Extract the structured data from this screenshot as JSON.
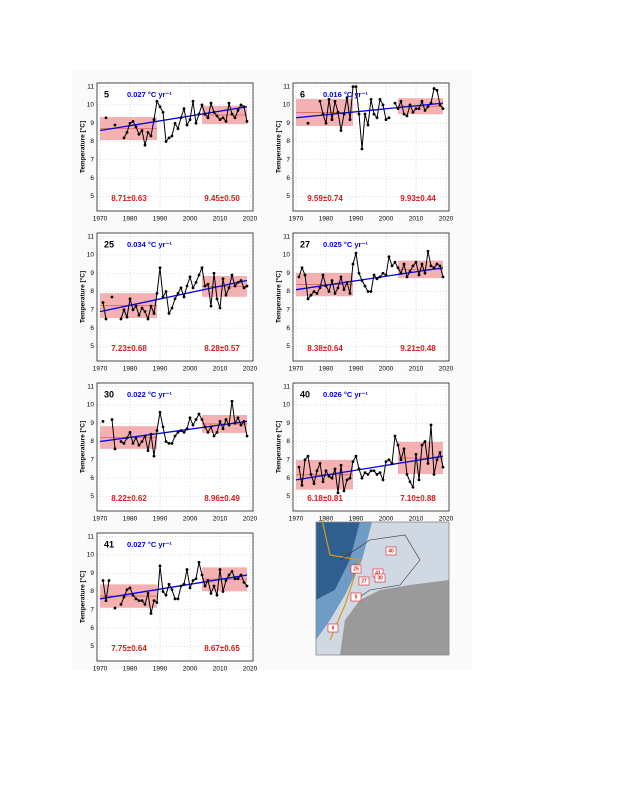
{
  "chart_data": [
    {
      "type": "line",
      "panel": "5",
      "trend_label": "0.027 °C yr⁻¹",
      "ylabel": "Temperature [°C]",
      "x": [
        1971,
        1972,
        1973,
        1974,
        1975,
        1976,
        1977,
        1978,
        1979,
        1980,
        1981,
        1982,
        1983,
        1984,
        1985,
        1986,
        1987,
        1988,
        1989,
        1990,
        1991,
        1992,
        1993,
        1994,
        1995,
        1996,
        1997,
        1998,
        1999,
        2000,
        2001,
        2002,
        2003,
        2004,
        2005,
        2006,
        2007,
        2008,
        2009,
        2010,
        2011,
        2012,
        2013,
        2014,
        2015,
        2016,
        2017,
        2018,
        2019
      ],
      "series": [
        {
          "color": "#000000",
          "values": [
            null,
            9.3,
            null,
            null,
            8.9,
            null,
            null,
            8.2,
            8.5,
            9.0,
            9.1,
            8.8,
            8.4,
            8.6,
            7.8,
            8.5,
            8.3,
            9.2,
            10.2,
            9.9,
            9.6,
            8.0,
            8.2,
            8.3,
            9.0,
            8.7,
            9.3,
            9.8,
            8.9,
            9.2,
            10.2,
            9.0,
            9.5,
            10.0,
            9.5,
            9.3,
            10.1,
            9.6,
            9.4,
            9.2,
            9.3,
            9.1,
            10.1,
            9.5,
            9.3,
            9.7,
            10.0,
            9.9,
            9.1
          ]
        }
      ],
      "trend_line": {
        "color": "#0000ee",
        "x": [
          1970,
          2019
        ],
        "values": [
          8.6,
          9.9
        ]
      },
      "bands": [
        {
          "x0": 1970,
          "x1": 1989,
          "mean": 8.71,
          "sd": 0.63,
          "label": "8.71±0.63"
        },
        {
          "x0": 2004,
          "x1": 2019,
          "mean": 9.45,
          "sd": 0.5,
          "label": "9.45±0.50"
        }
      ],
      "band_color": "#f3a3a3",
      "label_color": "#e0191b",
      "xlim": [
        1969,
        2021
      ],
      "xticks": [
        1970,
        1980,
        1990,
        2000,
        2010,
        2020
      ],
      "ylim": [
        4.2,
        11.2
      ],
      "yticks": [
        5,
        6,
        7,
        8,
        9,
        10,
        11
      ],
      "grid": true
    },
    {
      "type": "line",
      "panel": "6",
      "trend_label": "0.016 °C yr⁻¹",
      "ylabel": "Temperature [°C]",
      "x": [
        1971,
        1972,
        1973,
        1974,
        1975,
        1976,
        1977,
        1978,
        1979,
        1980,
        1981,
        1982,
        1983,
        1984,
        1985,
        1986,
        1987,
        1988,
        1989,
        1990,
        1991,
        1992,
        1993,
        1994,
        1995,
        1996,
        1997,
        1998,
        1999,
        2000,
        2001,
        2002,
        2003,
        2004,
        2005,
        2006,
        2007,
        2008,
        2009,
        2010,
        2011,
        2012,
        2013,
        2014,
        2015,
        2016,
        2017,
        2018,
        2019
      ],
      "series": [
        {
          "color": "#000000",
          "values": [
            null,
            null,
            null,
            9.0,
            null,
            null,
            null,
            10.2,
            9.5,
            9.0,
            10.3,
            9.2,
            10.2,
            9.6,
            8.6,
            9.5,
            10.4,
            9.2,
            11.0,
            11.0,
            9.5,
            7.6,
            9.5,
            8.9,
            10.3,
            9.5,
            9.3,
            10.3,
            10.0,
            9.2,
            9.3,
            null,
            10.1,
            9.8,
            10.2,
            9.5,
            9.4,
            10.0,
            9.6,
            9.8,
            9.8,
            10.2,
            9.7,
            9.9,
            10.1,
            10.9,
            10.8,
            10.0,
            9.8
          ]
        }
      ],
      "trend_line": {
        "color": "#0000ee",
        "x": [
          1970,
          2019
        ],
        "values": [
          9.3,
          10.1
        ]
      },
      "bands": [
        {
          "x0": 1970,
          "x1": 1989,
          "mean": 9.59,
          "sd": 0.74,
          "label": "9.59±0.74"
        },
        {
          "x0": 2004,
          "x1": 2019,
          "mean": 9.93,
          "sd": 0.44,
          "label": "9.93±0.44"
        }
      ],
      "band_color": "#f3a3a3",
      "label_color": "#e0191b",
      "xlim": [
        1969,
        2021
      ],
      "xticks": [
        1970,
        1980,
        1990,
        2000,
        2010,
        2020
      ],
      "ylim": [
        4.2,
        11.2
      ],
      "yticks": [
        5,
        6,
        7,
        8,
        9,
        10,
        11
      ],
      "grid": true
    },
    {
      "type": "line",
      "panel": "25",
      "trend_label": "0.034 °C yr⁻¹",
      "ylabel": "Temperature [°C]",
      "x": [
        1971,
        1972,
        1973,
        1974,
        1975,
        1976,
        1977,
        1978,
        1979,
        1980,
        1981,
        1982,
        1983,
        1984,
        1985,
        1986,
        1987,
        1988,
        1989,
        1990,
        1991,
        1992,
        1993,
        1994,
        1995,
        1996,
        1997,
        1998,
        1999,
        2000,
        2001,
        2002,
        2003,
        2004,
        2005,
        2006,
        2007,
        2008,
        2009,
        2010,
        2011,
        2012,
        2013,
        2014,
        2015,
        2016,
        2017,
        2018,
        2019
      ],
      "series": [
        {
          "color": "#000000",
          "values": [
            7.4,
            6.5,
            null,
            7.7,
            null,
            null,
            6.5,
            7.0,
            6.6,
            7.6,
            7.0,
            7.2,
            6.7,
            7.1,
            6.9,
            6.5,
            7.2,
            6.8,
            7.9,
            9.3,
            7.7,
            8.0,
            6.8,
            7.1,
            7.6,
            7.9,
            8.2,
            7.7,
            8.3,
            8.8,
            8.2,
            8.5,
            8.9,
            9.3,
            8.3,
            8.4,
            7.2,
            9.0,
            7.6,
            7.1,
            8.7,
            7.8,
            8.2,
            8.9,
            8.3,
            8.5,
            8.6,
            8.2,
            8.3
          ]
        }
      ],
      "trend_line": {
        "color": "#0000ee",
        "x": [
          1970,
          2019
        ],
        "values": [
          6.9,
          8.6
        ]
      },
      "bands": [
        {
          "x0": 1970,
          "x1": 1989,
          "mean": 7.23,
          "sd": 0.68,
          "label": "7.23±0.68"
        },
        {
          "x0": 2004,
          "x1": 2019,
          "mean": 8.28,
          "sd": 0.57,
          "label": "8.28±0.57"
        }
      ],
      "band_color": "#f3a3a3",
      "label_color": "#e0191b",
      "xlim": [
        1969,
        2021
      ],
      "xticks": [
        1970,
        1980,
        1990,
        2000,
        2010,
        2020
      ],
      "ylim": [
        4.2,
        11.2
      ],
      "yticks": [
        5,
        6,
        7,
        8,
        9,
        10,
        11
      ],
      "grid": true
    },
    {
      "type": "line",
      "panel": "27",
      "trend_label": "0.025 °C yr⁻¹",
      "ylabel": "Temperature [°C]",
      "x": [
        1971,
        1972,
        1973,
        1974,
        1975,
        1976,
        1977,
        1978,
        1979,
        1980,
        1981,
        1982,
        1983,
        1984,
        1985,
        1986,
        1987,
        1988,
        1989,
        1990,
        1991,
        1992,
        1993,
        1994,
        1995,
        1996,
        1997,
        1998,
        1999,
        2000,
        2001,
        2002,
        2003,
        2004,
        2005,
        2006,
        2007,
        2008,
        2009,
        2010,
        2011,
        2012,
        2013,
        2014,
        2015,
        2016,
        2017,
        2018,
        2019
      ],
      "series": [
        {
          "color": "#000000",
          "values": [
            8.8,
            9.3,
            8.9,
            7.6,
            7.8,
            8.0,
            7.9,
            8.2,
            8.9,
            8.3,
            8.0,
            8.6,
            7.9,
            8.2,
            8.8,
            8.1,
            8.5,
            7.9,
            9.5,
            10.1,
            9.0,
            8.6,
            8.3,
            8.0,
            8.0,
            8.9,
            8.7,
            8.8,
            9.0,
            8.9,
            9.9,
            9.4,
            9.6,
            9.3,
            9.0,
            9.5,
            8.8,
            9.1,
            9.4,
            9.6,
            8.9,
            9.5,
            9.0,
            10.2,
            9.4,
            9.3,
            9.5,
            9.4,
            8.8
          ]
        }
      ],
      "trend_line": {
        "color": "#0000ee",
        "x": [
          1970,
          2019
        ],
        "values": [
          8.1,
          9.3
        ]
      },
      "bands": [
        {
          "x0": 1970,
          "x1": 1989,
          "mean": 8.38,
          "sd": 0.64,
          "label": "8.38±0.64"
        },
        {
          "x0": 2004,
          "x1": 2019,
          "mean": 9.21,
          "sd": 0.48,
          "label": "9.21±0.48"
        }
      ],
      "band_color": "#f3a3a3",
      "label_color": "#e0191b",
      "xlim": [
        1969,
        2021
      ],
      "xticks": [
        1970,
        1980,
        1990,
        2000,
        2010,
        2020
      ],
      "ylim": [
        4.2,
        11.2
      ],
      "yticks": [
        5,
        6,
        7,
        8,
        9,
        10,
        11
      ],
      "grid": true
    },
    {
      "type": "line",
      "panel": "30",
      "trend_label": "0.022 °C yr⁻¹",
      "ylabel": "Temperature [°C]",
      "x": [
        1971,
        1972,
        1973,
        1974,
        1975,
        1976,
        1977,
        1978,
        1979,
        1980,
        1981,
        1982,
        1983,
        1984,
        1985,
        1986,
        1987,
        1988,
        1989,
        1990,
        1991,
        1992,
        1993,
        1994,
        1995,
        1996,
        1997,
        1998,
        1999,
        2000,
        2001,
        2002,
        2003,
        2004,
        2005,
        2006,
        2007,
        2008,
        2009,
        2010,
        2011,
        2012,
        2013,
        2014,
        2015,
        2016,
        2017,
        2018,
        2019
      ],
      "series": [
        {
          "color": "#000000",
          "values": [
            9.1,
            null,
            null,
            9.2,
            7.6,
            null,
            8.0,
            7.9,
            8.2,
            8.5,
            7.9,
            8.2,
            7.8,
            8.0,
            8.3,
            7.5,
            8.4,
            7.2,
            8.6,
            9.6,
            8.8,
            8.0,
            7.9,
            7.9,
            8.3,
            8.5,
            8.6,
            8.5,
            8.7,
            9.3,
            8.9,
            9.2,
            9.5,
            9.2,
            8.8,
            8.5,
            8.8,
            8.3,
            8.5,
            9.1,
            8.7,
            9.2,
            8.9,
            10.2,
            9.0,
            9.3,
            8.9,
            9.1,
            8.3
          ]
        }
      ],
      "trend_line": {
        "color": "#0000ee",
        "x": [
          1970,
          2019
        ],
        "values": [
          8.0,
          9.1
        ]
      },
      "bands": [
        {
          "x0": 1970,
          "x1": 1989,
          "mean": 8.22,
          "sd": 0.62,
          "label": "8.22±0.62"
        },
        {
          "x0": 2004,
          "x1": 2019,
          "mean": 8.96,
          "sd": 0.49,
          "label": "8.96±0.49"
        }
      ],
      "band_color": "#f3a3a3",
      "label_color": "#e0191b",
      "xlim": [
        1969,
        2021
      ],
      "xticks": [
        1970,
        1980,
        1990,
        2000,
        2010,
        2020
      ],
      "ylim": [
        4.2,
        11.2
      ],
      "yticks": [
        5,
        6,
        7,
        8,
        9,
        10,
        11
      ],
      "grid": true
    },
    {
      "type": "line",
      "panel": "40",
      "trend_label": "0.026 °C yr⁻¹",
      "ylabel": "Temperature [°C]",
      "x": [
        1971,
        1972,
        1973,
        1974,
        1975,
        1976,
        1977,
        1978,
        1979,
        1980,
        1981,
        1982,
        1983,
        1984,
        1985,
        1986,
        1987,
        1988,
        1989,
        1990,
        1991,
        1992,
        1993,
        1994,
        1995,
        1996,
        1997,
        1998,
        1999,
        2000,
        2001,
        2002,
        2003,
        2004,
        2005,
        2006,
        2007,
        2008,
        2009,
        2010,
        2011,
        2012,
        2013,
        2014,
        2015,
        2016,
        2017,
        2018,
        2019
      ],
      "series": [
        {
          "color": "#000000",
          "values": [
            6.6,
            5.6,
            7.0,
            7.2,
            6.2,
            5.7,
            6.4,
            6.8,
            5.8,
            6.4,
            6.1,
            6.0,
            6.5,
            5.2,
            6.7,
            5.3,
            5.9,
            6.0,
            6.9,
            7.2,
            6.5,
            6.0,
            6.3,
            6.2,
            6.4,
            6.4,
            6.2,
            6.3,
            5.9,
            6.9,
            7.0,
            6.8,
            8.3,
            7.8,
            7.0,
            7.6,
            6.2,
            5.8,
            5.5,
            7.3,
            5.9,
            7.8,
            8.0,
            6.8,
            8.9,
            6.2,
            7.0,
            7.4,
            6.6
          ]
        }
      ],
      "trend_line": {
        "color": "#0000ee",
        "x": [
          1970,
          2019
        ],
        "values": [
          5.9,
          7.2
        ]
      },
      "bands": [
        {
          "x0": 1970,
          "x1": 1989,
          "mean": 6.18,
          "sd": 0.81,
          "label": "6.18±0.81"
        },
        {
          "x0": 2004,
          "x1": 2019,
          "mean": 7.1,
          "sd": 0.88,
          "label": "7.10±0.88"
        }
      ],
      "band_color": "#f3a3a3",
      "label_color": "#e0191b",
      "xlim": [
        1969,
        2021
      ],
      "xticks": [
        1970,
        1980,
        1990,
        2000,
        2010,
        2020
      ],
      "ylim": [
        4.2,
        11.2
      ],
      "yticks": [
        5,
        6,
        7,
        8,
        9,
        10,
        11
      ],
      "grid": true
    },
    {
      "type": "line",
      "panel": "41",
      "trend_label": "0.027 °C yr⁻¹",
      "ylabel": "Temperature [°C]",
      "x": [
        1971,
        1972,
        1973,
        1974,
        1975,
        1976,
        1977,
        1978,
        1979,
        1980,
        1981,
        1982,
        1983,
        1984,
        1985,
        1986,
        1987,
        1988,
        1989,
        1990,
        1991,
        1992,
        1993,
        1994,
        1995,
        1996,
        1997,
        1998,
        1999,
        2000,
        2001,
        2002,
        2003,
        2004,
        2005,
        2006,
        2007,
        2008,
        2009,
        2010,
        2011,
        2012,
        2013,
        2014,
        2015,
        2016,
        2017,
        2018,
        2019
      ],
      "series": [
        {
          "color": "#000000",
          "values": [
            8.6,
            7.5,
            8.6,
            null,
            7.1,
            null,
            7.3,
            7.7,
            8.1,
            8.2,
            7.8,
            7.6,
            7.5,
            7.5,
            7.3,
            7.9,
            6.8,
            7.5,
            7.4,
            9.4,
            8.0,
            7.8,
            8.4,
            8.1,
            7.6,
            7.6,
            8.3,
            8.4,
            9.2,
            8.2,
            8.6,
            8.7,
            9.6,
            8.9,
            8.3,
            8.6,
            7.9,
            8.3,
            7.8,
            9.2,
            8.0,
            8.6,
            8.9,
            9.1,
            8.7,
            8.7,
            8.9,
            8.5,
            8.3
          ]
        }
      ],
      "trend_line": {
        "color": "#0000ee",
        "x": [
          1970,
          2019
        ],
        "values": [
          7.6,
          8.9
        ]
      },
      "bands": [
        {
          "x0": 1970,
          "x1": 1989,
          "mean": 7.75,
          "sd": 0.64,
          "label": "7.75±0.64"
        },
        {
          "x0": 2004,
          "x1": 2019,
          "mean": 8.67,
          "sd": 0.65,
          "label": "8.67±0.65"
        }
      ],
      "band_color": "#f3a3a3",
      "label_color": "#e0191b",
      "xlim": [
        1969,
        2021
      ],
      "xticks": [
        1970,
        1980,
        1990,
        2000,
        2010,
        2020
      ],
      "ylim": [
        4.2,
        11.2
      ],
      "yticks": [
        5,
        6,
        7,
        8,
        9,
        10,
        11
      ],
      "grid": true
    }
  ],
  "map": {
    "labels": [
      "40",
      "41",
      "25",
      "30",
      "27",
      "5",
      "6"
    ]
  }
}
